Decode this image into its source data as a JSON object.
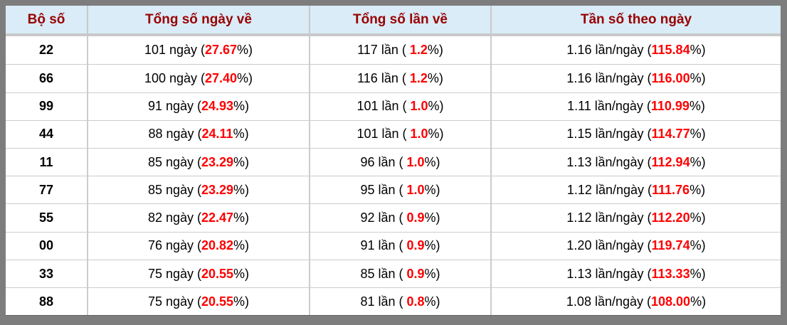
{
  "table": {
    "columns": [
      {
        "key": "pair",
        "label": "Bộ số"
      },
      {
        "key": "days",
        "label": "Tổng số ngày về"
      },
      {
        "key": "times",
        "label": "Tổng số lần về"
      },
      {
        "key": "freq",
        "label": "Tần số theo ngày"
      }
    ],
    "rows": [
      {
        "pair": "22",
        "days": [
          "101 ngày (",
          "27.67",
          "%)"
        ],
        "times": [
          "117 lần ( ",
          "1.2",
          "%)"
        ],
        "freq": [
          "1.16 lần/ngày (",
          "115.84",
          "%)"
        ]
      },
      {
        "pair": "66",
        "days": [
          "100 ngày (",
          "27.40",
          "%)"
        ],
        "times": [
          "116 lần ( ",
          "1.2",
          "%)"
        ],
        "freq": [
          "1.16 lần/ngày (",
          "116.00",
          "%)"
        ]
      },
      {
        "pair": "99",
        "days": [
          "91 ngày (",
          "24.93",
          "%)"
        ],
        "times": [
          "101 lần ( ",
          "1.0",
          "%)"
        ],
        "freq": [
          "1.11 lần/ngày (",
          "110.99",
          "%)"
        ]
      },
      {
        "pair": "44",
        "days": [
          "88 ngày (",
          "24.11",
          "%)"
        ],
        "times": [
          "101 lần ( ",
          "1.0",
          "%)"
        ],
        "freq": [
          "1.15 lần/ngày (",
          "114.77",
          "%)"
        ]
      },
      {
        "pair": "11",
        "days": [
          "85 ngày (",
          "23.29",
          "%)"
        ],
        "times": [
          "96 lần ( ",
          "1.0",
          "%)"
        ],
        "freq": [
          "1.13 lần/ngày (",
          "112.94",
          "%)"
        ]
      },
      {
        "pair": "77",
        "days": [
          "85 ngày (",
          "23.29",
          "%)"
        ],
        "times": [
          "95 lần ( ",
          "1.0",
          "%)"
        ],
        "freq": [
          "1.12 lần/ngày (",
          "111.76",
          "%)"
        ]
      },
      {
        "pair": "55",
        "days": [
          "82 ngày (",
          "22.47",
          "%)"
        ],
        "times": [
          "92 lần ( ",
          "0.9",
          "%)"
        ],
        "freq": [
          "1.12 lần/ngày (",
          "112.20",
          "%)"
        ]
      },
      {
        "pair": "00",
        "days": [
          "76 ngày (",
          "20.82",
          "%)"
        ],
        "times": [
          "91 lần ( ",
          "0.9",
          "%)"
        ],
        "freq": [
          "1.20 lần/ngày (",
          "119.74",
          "%)"
        ]
      },
      {
        "pair": "33",
        "days": [
          "75 ngày (",
          "20.55",
          "%)"
        ],
        "times": [
          "85 lần ( ",
          "0.9",
          "%)"
        ],
        "freq": [
          "1.13 lần/ngày (",
          "113.33",
          "%)"
        ]
      },
      {
        "pair": "88",
        "days": [
          "75 ngày (",
          "20.55",
          "%)"
        ],
        "times": [
          "81 lần ( ",
          "0.8",
          "%)"
        ],
        "freq": [
          "1.08 lần/ngày (",
          "108.00",
          "%)"
        ]
      }
    ]
  },
  "colors": {
    "frame": "#7d7d7d",
    "header_bg": "#d9ecf7",
    "header_text": "#990000",
    "highlight_red": "#ff0000",
    "cell_border": "#cccccc",
    "header_border": "#c9c9c9"
  }
}
